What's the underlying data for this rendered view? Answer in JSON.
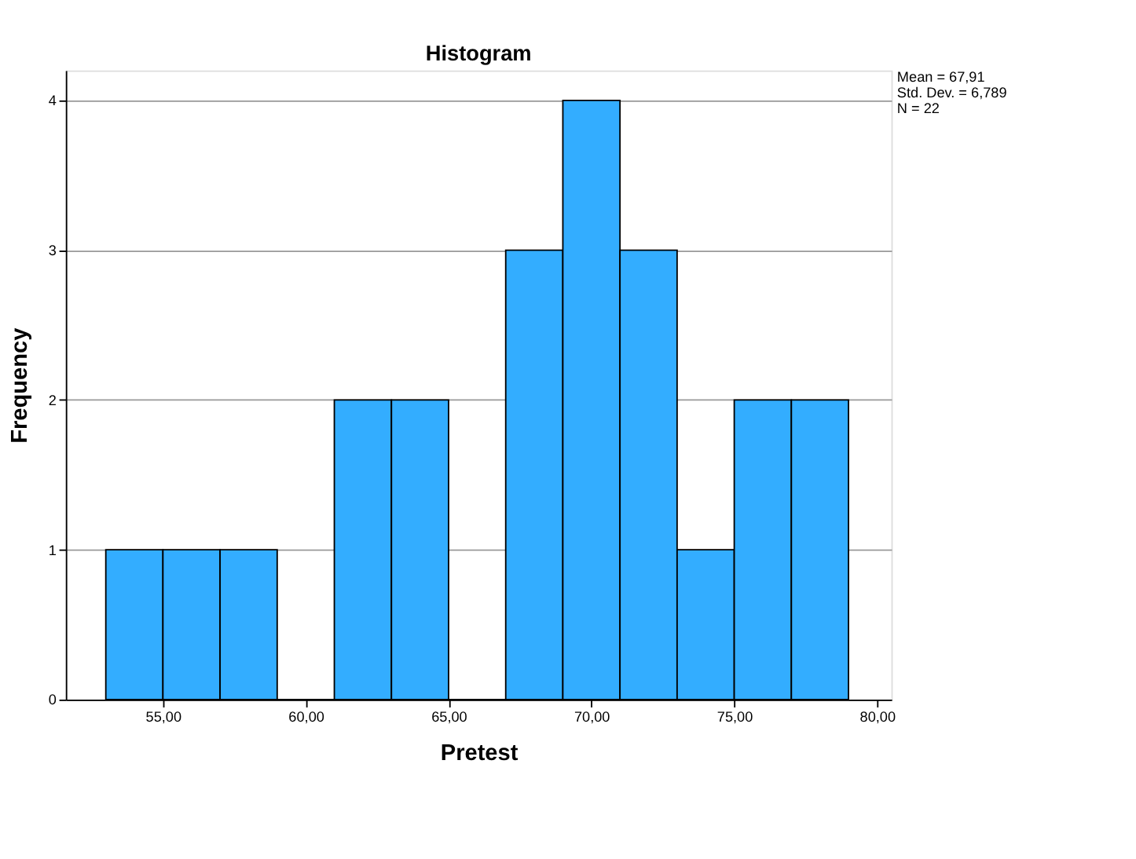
{
  "chart_data": {
    "type": "histogram",
    "title": "Histogram",
    "xlabel": "Pretest",
    "ylabel": "Frequency",
    "bins": [
      53,
      55,
      57,
      59,
      61,
      63,
      65,
      67,
      69,
      71,
      73,
      75,
      77,
      79
    ],
    "values": [
      1,
      1,
      1,
      0,
      2,
      2,
      0,
      3,
      4,
      3,
      1,
      2,
      2
    ],
    "color": "#33adff",
    "xlim": [
      51.6,
      80.5
    ],
    "xticks": [
      {
        "value": 55,
        "label": "55,00"
      },
      {
        "value": 60,
        "label": "60,00"
      },
      {
        "value": 65,
        "label": "65,00"
      },
      {
        "value": 70,
        "label": "70,00"
      },
      {
        "value": 75,
        "label": "75,00"
      },
      {
        "value": 80,
        "label": "80,00"
      }
    ],
    "ylim": [
      0,
      4.2
    ],
    "yticks": [
      0,
      1,
      2,
      3,
      4
    ],
    "grid": "y",
    "annotations": [
      "Mean = 67,91",
      "Std. Dev. = 6,789",
      "N = 22"
    ]
  }
}
